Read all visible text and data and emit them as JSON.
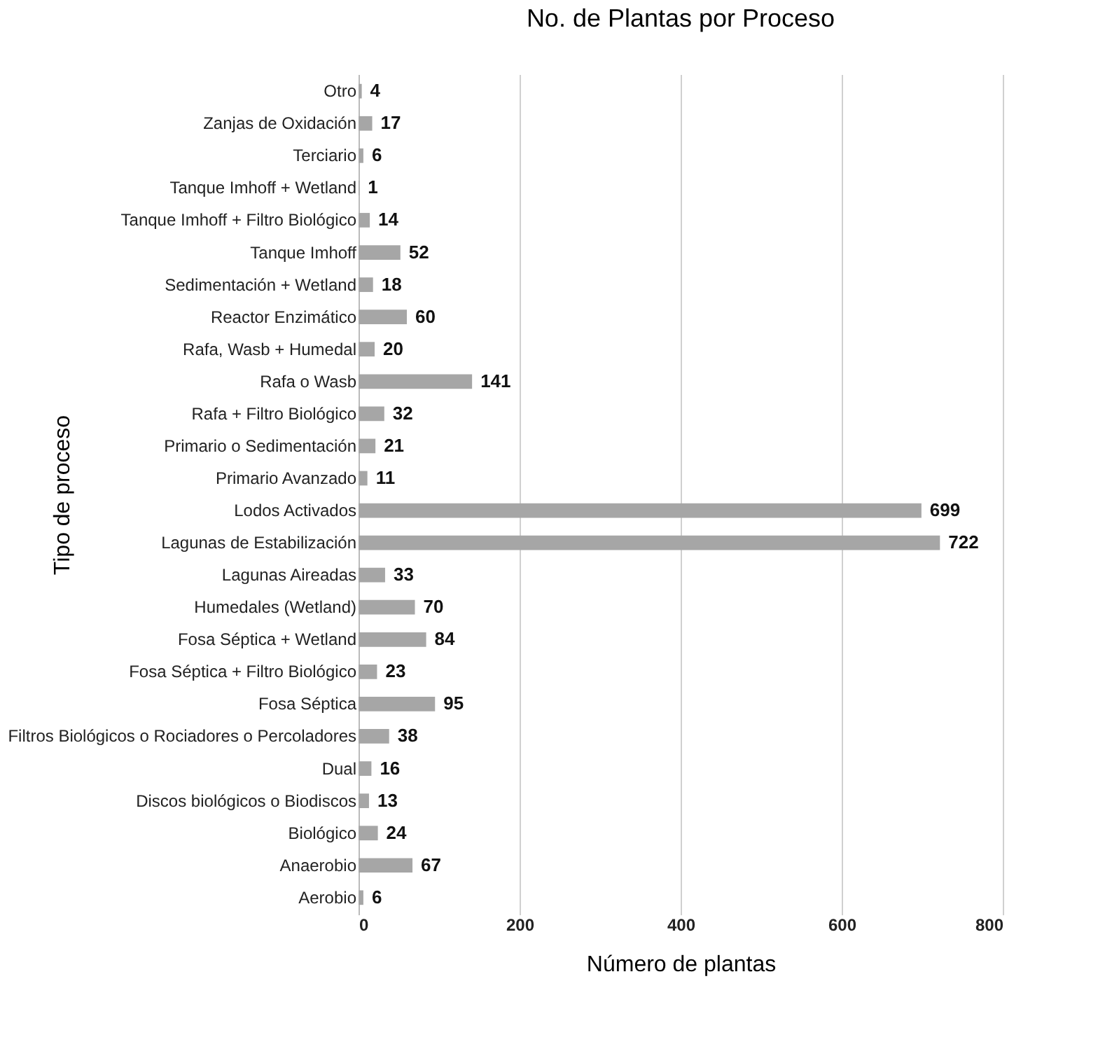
{
  "chart_data": {
    "type": "bar",
    "orientation": "horizontal",
    "title": "No. de Plantas por Proceso",
    "xlabel": "Número de plantas",
    "ylabel": "Tipo de proceso",
    "categories": [
      "Otro",
      "Zanjas de Oxidación",
      "Terciario",
      "Tanque Imhoff + Wetland",
      "Tanque Imhoff + Filtro Biológico",
      "Tanque Imhoff",
      "Sedimentación + Wetland",
      "Reactor Enzimático",
      "Rafa, Wasb + Humedal",
      "Rafa o Wasb",
      "Rafa + Filtro Biológico",
      "Primario o Sedimentación",
      "Primario Avanzado",
      "Lodos Activados",
      "Lagunas de Estabilización",
      "Lagunas Aireadas",
      "Humedales (Wetland)",
      "Fosa Séptica + Wetland",
      "Fosa Séptica + Filtro Biológico",
      "Fosa Séptica",
      "Filtros Biológicos o Rociadores o Percoladores",
      "Dual",
      "Discos biológicos o Biodiscos",
      "Biológico",
      "Anaerobio",
      "Aerobio"
    ],
    "values": [
      4,
      17,
      6,
      1,
      14,
      52,
      18,
      60,
      20,
      141,
      32,
      21,
      11,
      699,
      722,
      33,
      70,
      84,
      23,
      95,
      38,
      16,
      13,
      24,
      67,
      6
    ],
    "color": "#a6a6a6",
    "xlim": [
      0,
      800
    ],
    "xticks": [
      0,
      200,
      400,
      600,
      800
    ],
    "grid": "x",
    "data_labels": true
  }
}
